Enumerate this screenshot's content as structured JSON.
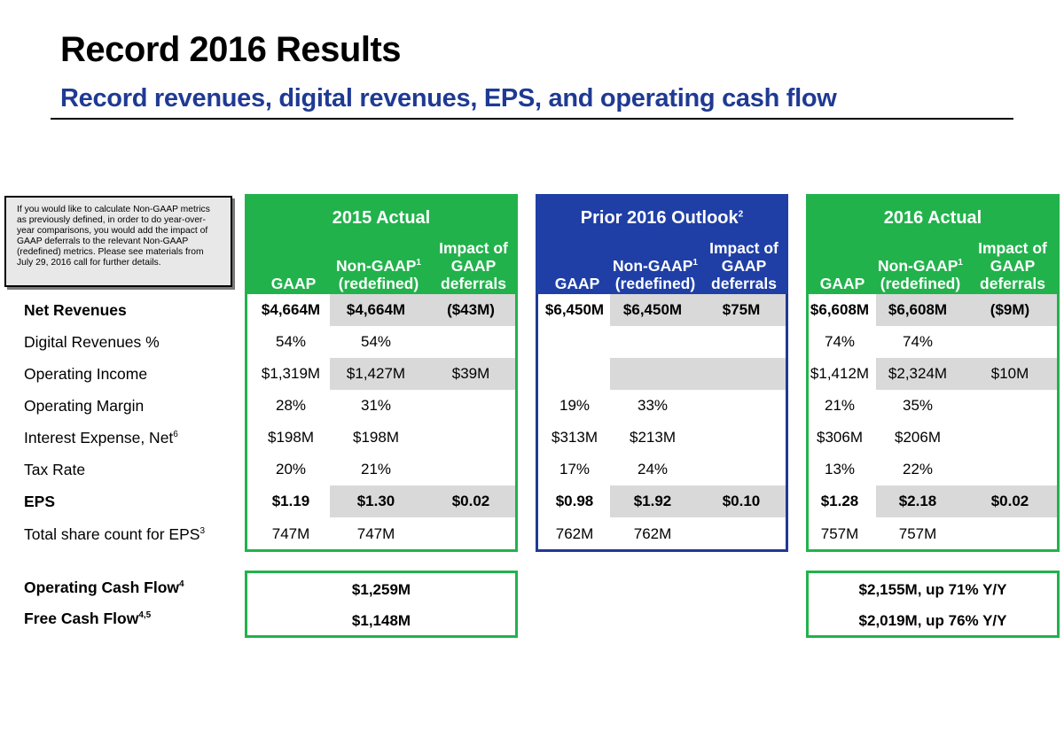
{
  "header": {
    "title": "Record 2016 Results",
    "subtitle": "Record revenues, digital revenues, EPS, and operating cash flow"
  },
  "note": {
    "text": "If you would like to calculate Non-GAAP metrics as previously defined, in order to do year-over-year comparisons, you would add the impact of GAAP deferrals to the relevant Non-GAAP (redefined) metrics. Please see materials from July 29, 2016 call for further details."
  },
  "columns": {
    "gaap": "GAAP",
    "nongaap": "Non-GAAP",
    "nongaap_sup": "1",
    "redefined": "(redefined)",
    "impact_line1": "Impact of",
    "impact_line2": "GAAP",
    "impact_line3": "deferrals"
  },
  "panels": [
    {
      "title": "2015 Actual",
      "title_sup": "",
      "color": "#22b24c"
    },
    {
      "title": "Prior 2016 Outlook",
      "title_sup": "2",
      "color": "#1f3fa6"
    },
    {
      "title": "2016 Actual",
      "title_sup": "",
      "color": "#22b24c"
    }
  ],
  "rows": [
    {
      "label": "Net Revenues",
      "sup": "",
      "bold": true,
      "p0": [
        "$4,664M",
        "$4,664M",
        "($43M)"
      ],
      "p1": [
        "$6,450M",
        "$6,450M",
        "$75M"
      ],
      "p2": [
        "$6,608M",
        "$6,608M",
        "($9M)"
      ]
    },
    {
      "label": "Digital Revenues %",
      "sup": "",
      "bold": false,
      "p0": [
        "54%",
        "54%",
        ""
      ],
      "p1": [
        "",
        "",
        ""
      ],
      "p2": [
        "74%",
        "74%",
        ""
      ]
    },
    {
      "label": "Operating Income",
      "sup": "",
      "bold": false,
      "p0": [
        "$1,319M",
        "$1,427M",
        "$39M"
      ],
      "p1": [
        "",
        "",
        ""
      ],
      "p2": [
        "$1,412M",
        "$2,324M",
        "$10M"
      ]
    },
    {
      "label": "Operating Margin",
      "sup": "",
      "bold": false,
      "p0": [
        "28%",
        "31%",
        ""
      ],
      "p1": [
        "19%",
        "33%",
        ""
      ],
      "p2": [
        "21%",
        "35%",
        ""
      ]
    },
    {
      "label": "Interest Expense, Net",
      "sup": "6",
      "bold": false,
      "p0": [
        "$198M",
        "$198M",
        ""
      ],
      "p1": [
        "$313M",
        "$213M",
        ""
      ],
      "p2": [
        "$306M",
        "$206M",
        ""
      ]
    },
    {
      "label": "Tax Rate",
      "sup": "",
      "bold": false,
      "p0": [
        "20%",
        "21%",
        ""
      ],
      "p1": [
        "17%",
        "24%",
        ""
      ],
      "p2": [
        "13%",
        "22%",
        ""
      ]
    },
    {
      "label": "EPS",
      "sup": "",
      "bold": true,
      "p0": [
        "$1.19",
        "$1.30",
        "$0.02"
      ],
      "p1": [
        "$0.98",
        "$1.92",
        "$0.10"
      ],
      "p2": [
        "$1.28",
        "$2.18",
        "$0.02"
      ]
    },
    {
      "label": "Total share count for EPS",
      "sup": "3",
      "bold": false,
      "p0": [
        "747M",
        "747M",
        ""
      ],
      "p1": [
        "762M",
        "762M",
        ""
      ],
      "p2": [
        "757M",
        "757M",
        ""
      ]
    }
  ],
  "cashflow": [
    {
      "label": "Operating Cash Flow",
      "sup": "4",
      "v2015": "$1,259M",
      "v2016": "$2,155M, up 71% Y/Y"
    },
    {
      "label": "Free Cash Flow",
      "sup": "4,5",
      "v2015": "$1,148M",
      "v2016": "$2,019M, up 76% Y/Y"
    }
  ]
}
